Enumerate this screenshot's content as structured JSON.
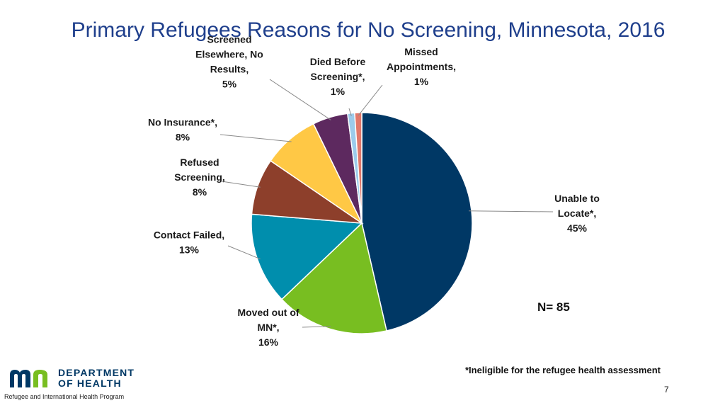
{
  "title": "Primary Refugees Reasons for No Screening, Minnesota, 2016",
  "n_label": "N= 85",
  "footnote": "*Ineligible for the refugee health assessment",
  "page_number": "7",
  "logo": {
    "line1": "DEPARTMENT",
    "line2": "OF HEALTH",
    "program": "Refugee and International Health Program",
    "colors": {
      "navy": "#003865",
      "green": "#78be21"
    }
  },
  "chart_data": {
    "type": "pie",
    "title": "Primary Refugees Reasons for No Screening, Minnesota, 2016",
    "n": 85,
    "start_angle_deg": 0,
    "direction": "clockwise",
    "slices": [
      {
        "label": "Unable to Locate*, 45%",
        "label_lines": [
          "Unable to",
          "Locate*,",
          "45%"
        ],
        "value": 45,
        "color": "#003865"
      },
      {
        "label": "Moved out of MN*, 16%",
        "label_lines": [
          "Moved out of",
          "MN*,",
          "16%"
        ],
        "value": 16,
        "color": "#78be21"
      },
      {
        "label": "Contact Failed, 13%",
        "label_lines": [
          "Contact Failed,",
          "13%"
        ],
        "value": 13,
        "color": "#008ead"
      },
      {
        "label": "Refused Screening, 8%",
        "label_lines": [
          "Refused",
          "Screening,",
          "8%"
        ],
        "value": 8,
        "color": "#8d3f2b"
      },
      {
        "label": "No Insurance*, 8%",
        "label_lines": [
          "No Insurance*,",
          "8%"
        ],
        "value": 8,
        "color": "#ffc845"
      },
      {
        "label": "Screened Elsewhere, No Results, 5%",
        "label_lines": [
          "Screened",
          "Elsewhere, No",
          "Results,",
          "5%"
        ],
        "value": 5,
        "color": "#5d295f"
      },
      {
        "label": "Died Before Screening*, 1%",
        "label_lines": [
          "Died Before",
          "Screening*,",
          "1%"
        ],
        "value": 1,
        "color": "#9bcbeb"
      },
      {
        "label": "Missed Appointments, 1%",
        "label_lines": [
          "Missed",
          "Appointments,",
          "1%"
        ],
        "value": 1,
        "color": "#e1786a"
      }
    ]
  }
}
